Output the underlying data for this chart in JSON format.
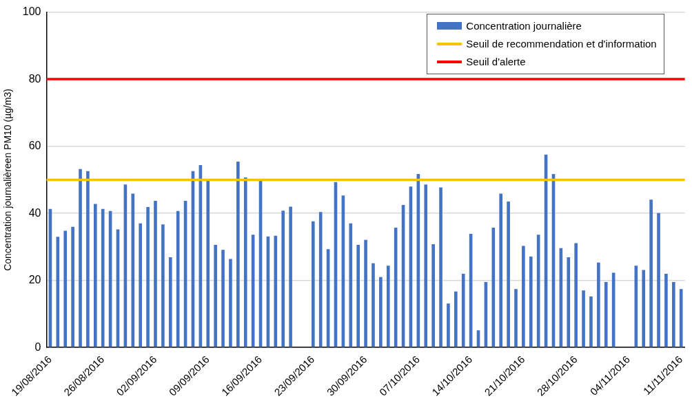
{
  "chart_data": {
    "type": "bar",
    "ylabel": "Concentration journalièreen PM10 (µg/m3)",
    "categories": [
      "19/08/2016",
      null,
      null,
      null,
      null,
      null,
      null,
      "26/08/2016",
      null,
      null,
      null,
      null,
      null,
      null,
      "02/09/2016",
      null,
      null,
      null,
      null,
      null,
      null,
      "09/09/2016",
      null,
      null,
      null,
      null,
      null,
      null,
      "16/09/2016",
      null,
      null,
      null,
      null,
      null,
      null,
      "23/09/2016",
      null,
      null,
      null,
      null,
      null,
      null,
      "30/09/2016",
      null,
      null,
      null,
      null,
      null,
      null,
      "07/10/2016",
      null,
      null,
      null,
      null,
      null,
      null,
      "14/10/2016",
      null,
      null,
      null,
      null,
      null,
      null,
      "21/10/2016",
      null,
      null,
      null,
      null,
      null,
      null,
      "28/10/2016",
      null,
      null,
      null,
      null,
      null,
      null,
      "04/11/2016",
      null,
      null,
      null,
      null,
      null,
      null,
      "11/11/2016"
    ],
    "series": [
      {
        "name": "Concentration journalière",
        "color": "#4472c4",
        "values": [
          41.3,
          33.0,
          34.8,
          36.0,
          53.2,
          52.6,
          42.8,
          41.3,
          40.7,
          35.2,
          48.6,
          45.9,
          37.0,
          41.9,
          43.7,
          36.7,
          26.9,
          40.7,
          43.7,
          52.6,
          54.4,
          49.7,
          30.6,
          29.1,
          26.4,
          55.4,
          50.7,
          33.6,
          49.7,
          33.1,
          33.3,
          40.8,
          42.0,
          null,
          null,
          37.6,
          40.4,
          29.3,
          49.3,
          45.3,
          37.0,
          30.6,
          32.1,
          25.1,
          21.0,
          24.4,
          35.7,
          42.5,
          48.0,
          51.7,
          48.6,
          30.8,
          47.7,
          13.1,
          16.7,
          22.0,
          33.9,
          5.1,
          19.5,
          35.7,
          45.9,
          43.5,
          17.4,
          30.3,
          27.1,
          33.6,
          57.5,
          51.7,
          29.6,
          26.9,
          31.1,
          17.0,
          15.2,
          25.3,
          19.5,
          22.3,
          null,
          null,
          24.4,
          23.1,
          44.1,
          40.1,
          22.0,
          19.5,
          17.4
        ]
      }
    ],
    "ref_lines": [
      {
        "axis": "y",
        "value": 50,
        "label": "Seuil de recommendation et d'information",
        "color": "#ffc000"
      },
      {
        "axis": "y",
        "value": 80,
        "label": "Seuil d'alerte",
        "color": "#ff0000"
      }
    ],
    "ylim": [
      0,
      100
    ],
    "yticks": [
      0,
      20,
      40,
      60,
      80,
      100
    ],
    "grid": "y",
    "legend": "top right"
  }
}
